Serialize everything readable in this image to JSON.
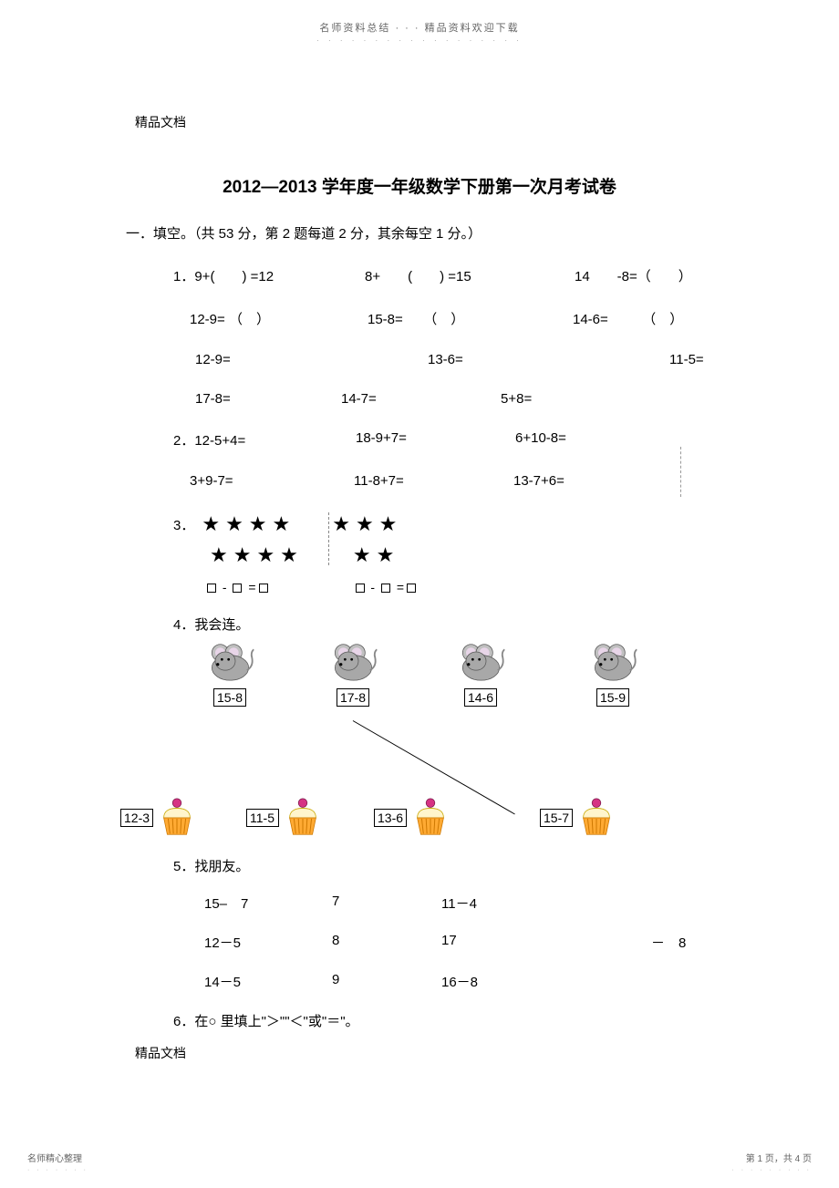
{
  "header": {
    "note": "名师资料总结 · · · 精品资料欢迎下载",
    "dots": "· · · · · · · · · · · · · · · · · ·"
  },
  "doc_label": "精品文档",
  "title": "2012—2013 学年度一年级数学下册第一次月考试卷",
  "section1": {
    "heading": "一．填空。（共 53 分，第 2 题每道 2 分，其余每空 1 分。）",
    "q1": {
      "label": "1．",
      "row1": {
        "a": "9+(　　) =12",
        "b": "8+　　(　　) =15",
        "c": "14　　-8=（　　）"
      },
      "row2": {
        "a": "12-9= （　）",
        "b": "15-8=　　（　）",
        "c": "14-6=　　　（　）"
      },
      "row3": {
        "a": "12-9=",
        "b": "13-6=",
        "c": "11-5="
      },
      "row4": {
        "a": "17-8=",
        "b": "14-7=",
        "c": "5+8="
      }
    },
    "q2": {
      "label": "2．",
      "row1": {
        "a": "12-5+4=",
        "b": "18-9+7=",
        "c": "6+10-8="
      },
      "row2": {
        "a": "3+9-7=",
        "b": "11-8+7=",
        "c": "13-7+6="
      }
    },
    "q3": {
      "label": "3．",
      "left_stars_top": "★★★★",
      "right_stars_top": "★★★",
      "left_stars_bot": "★★★★",
      "right_stars_bot": "★★"
    },
    "q4": {
      "label": "4．我会连。",
      "mice": [
        "15-8",
        "17-8",
        "14-6",
        "15-9"
      ],
      "cupcakes": [
        "12-3",
        "11-5",
        "13-6",
        "15-7"
      ],
      "mice_x": [
        55,
        190,
        330,
        475
      ],
      "cupcakes_x": [
        -30,
        108,
        248,
        430
      ]
    },
    "q5": {
      "label": "5．找朋友。",
      "rows": [
        {
          "a": "15–　7",
          "b": "7",
          "c": "11－4",
          "d": ""
        },
        {
          "a": "12－5",
          "b": "8",
          "c": "17",
          "d": "－　8"
        },
        {
          "a": "14－5",
          "b": "9",
          "c": "16－8",
          "d": ""
        }
      ]
    },
    "q6": {
      "label": "6．在○ 里填上\"＞\"\"＜\"或\"＝\"。"
    }
  },
  "footer": {
    "label": "精品文档",
    "bottom_left": "名师精心整理",
    "bottom_right": "第 1 页，共 4 页"
  },
  "colors": {
    "text": "#000000",
    "header_text": "#666666",
    "mouse_body": "#a8a8a8",
    "mouse_ear": "#c0c0c0",
    "mouse_inner": "#e8d5e8",
    "cupcake_top": "#d63384",
    "cupcake_cream": "#fff5cc",
    "cupcake_cup": "#ffaa33",
    "cupcake_stripe": "#cc7700"
  }
}
